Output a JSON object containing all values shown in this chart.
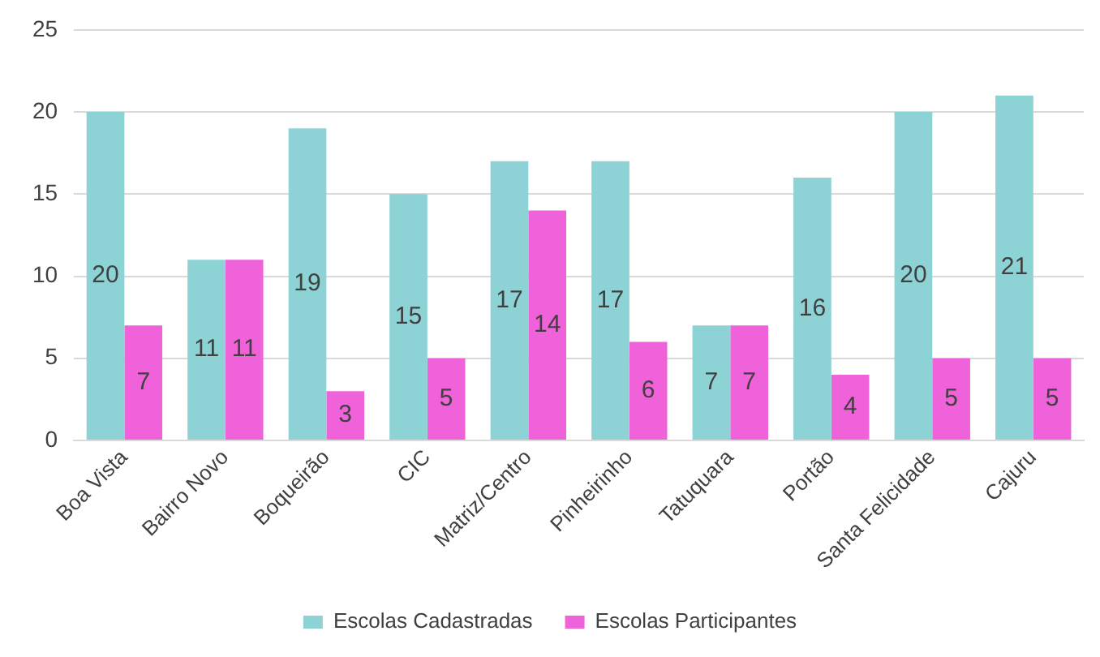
{
  "chart_data": {
    "type": "bar",
    "categories": [
      "Boa Vista",
      "Bairro Novo",
      "Boqueirão",
      "CIC",
      "Matriz/Centro",
      "Pinheirinho",
      "Tatuquara",
      "Portão",
      "Santa Felicidade",
      "Cajuru"
    ],
    "series": [
      {
        "name": "Escolas Cadastradas",
        "color": "#8dd3d5",
        "values": [
          20,
          11,
          19,
          15,
          17,
          17,
          7,
          16,
          20,
          21
        ]
      },
      {
        "name": "Escolas Participantes",
        "color": "#ef62d9",
        "values": [
          7,
          11,
          3,
          5,
          14,
          6,
          7,
          4,
          5,
          5
        ]
      }
    ],
    "ylim": [
      0,
      25
    ],
    "yticks": [
      0,
      5,
      10,
      15,
      20,
      25
    ],
    "grid": "y",
    "legend": "bottom",
    "data_labels": true
  }
}
